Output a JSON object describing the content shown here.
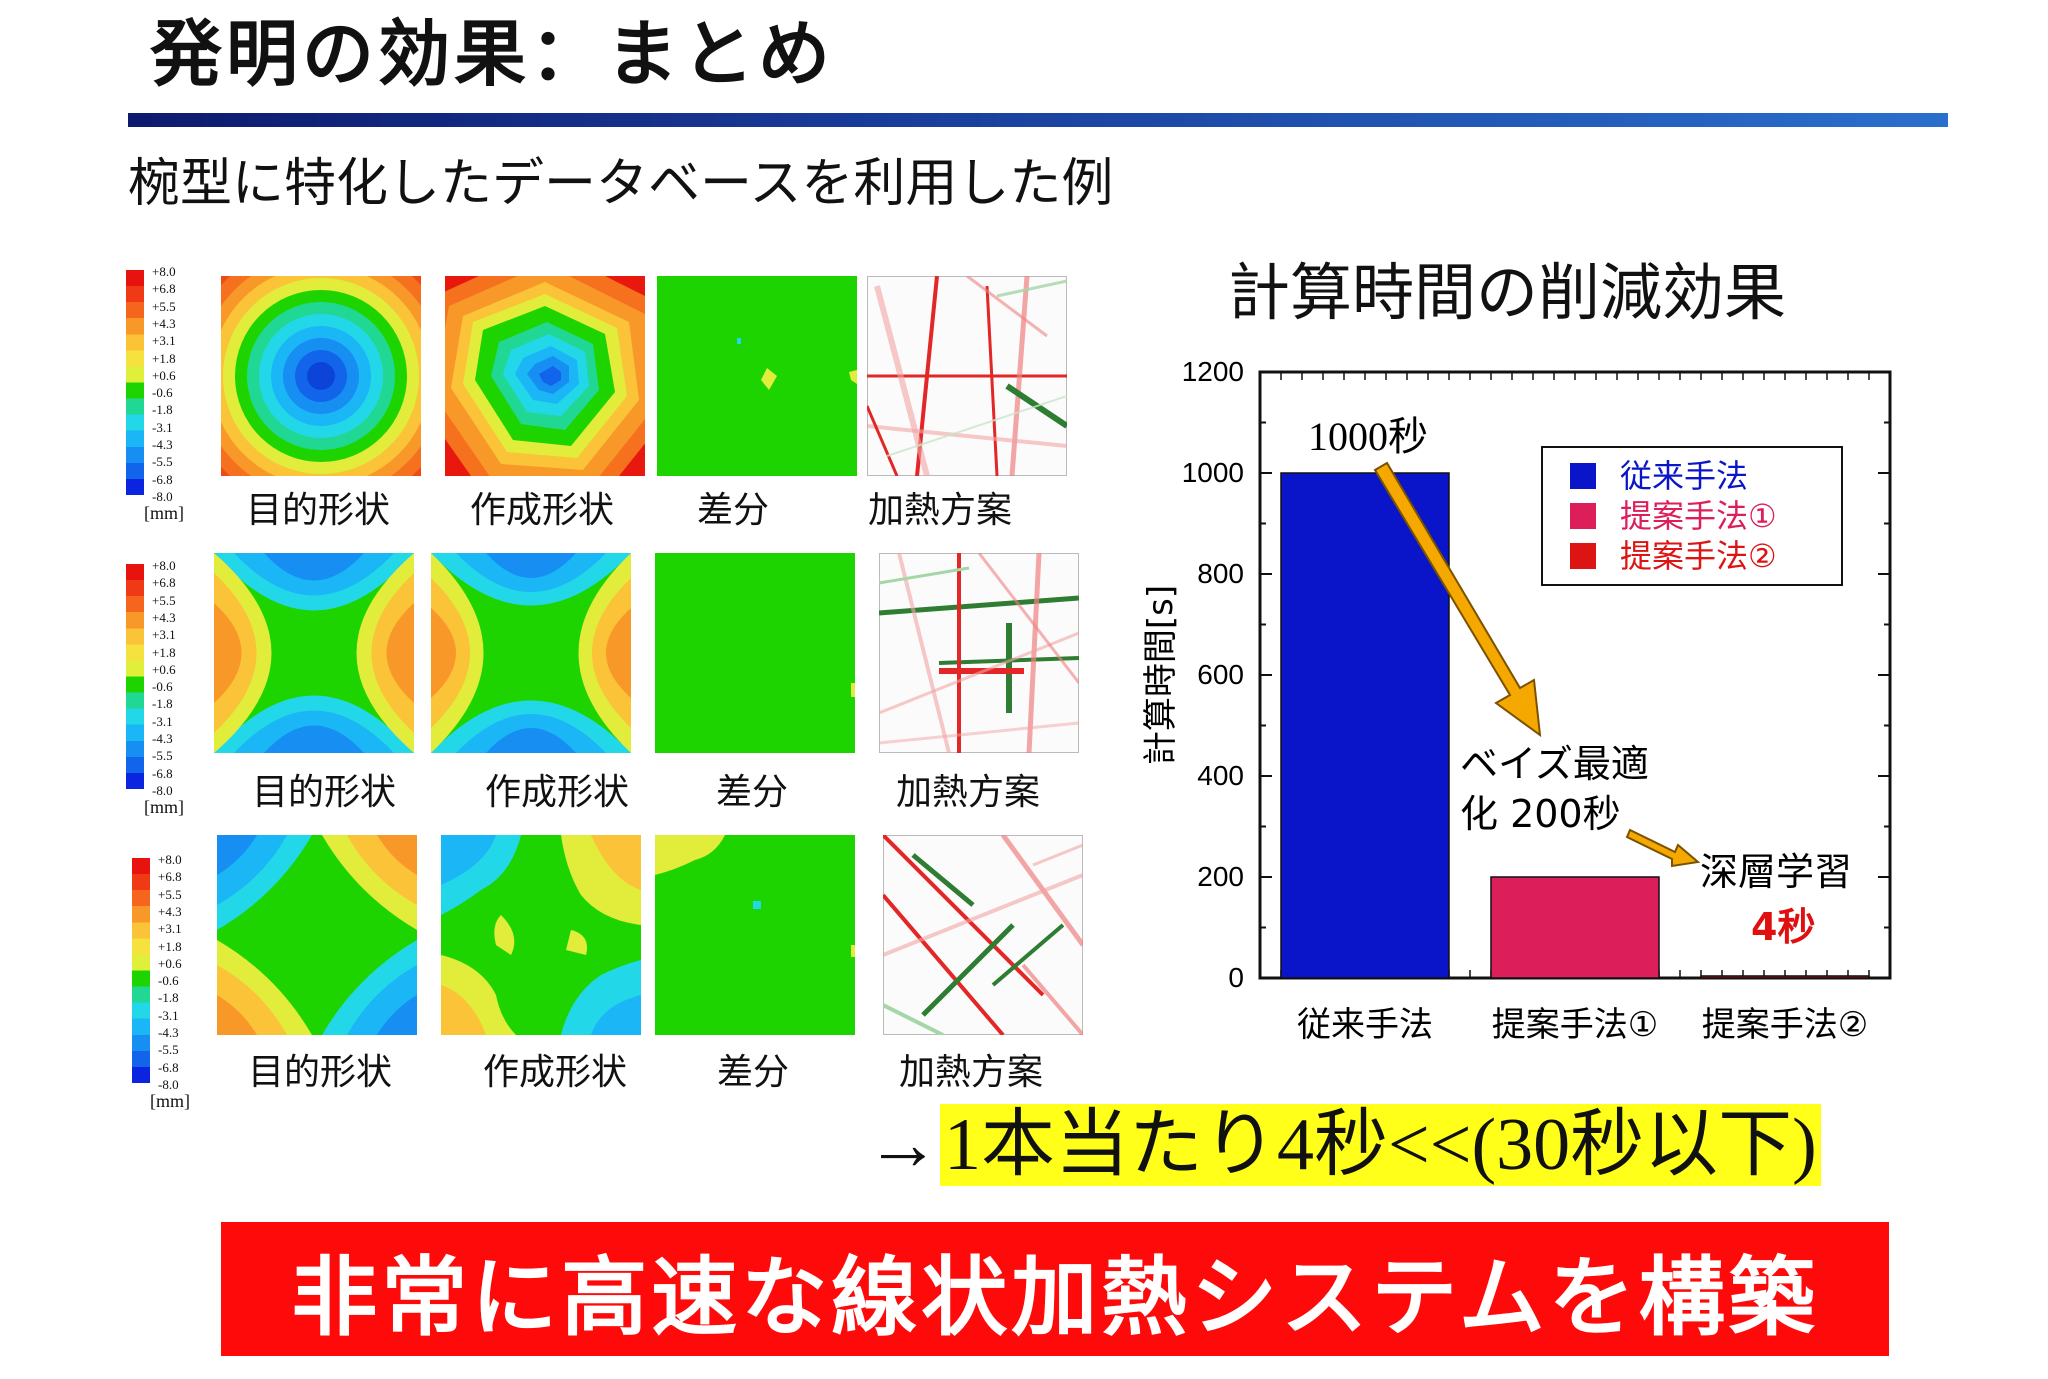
{
  "slide": {
    "title": "発明の効果：まとめ",
    "subtitle": "椀型に特化したデータベースを利用した例"
  },
  "colorbar": {
    "ticks": [
      "+8.0",
      "+6.8",
      "+5.5",
      "+4.3",
      "+3.1",
      "+1.8",
      "+0.6",
      "-0.6",
      "-1.8",
      "-3.1",
      "-4.3",
      "-5.5",
      "-6.8",
      "-8.0"
    ],
    "unit": "[mm]",
    "colors": [
      "#e8120f",
      "#f03a16",
      "#f5651d",
      "#f89828",
      "#fbc338",
      "#f6e23e",
      "#dfef3a",
      "#1ed400",
      "#20d894",
      "#22d8e8",
      "#1ab6f5",
      "#168ef2",
      "#1264ea",
      "#0a24e0"
    ]
  },
  "rows": [
    {
      "captions": {
        "target": "目的形状",
        "created": "作成形状",
        "diff": "差分",
        "plan": "加熱方案"
      }
    },
    {
      "captions": {
        "target": "目的形状",
        "created": "作成形状",
        "diff": "差分",
        "plan": "加熱方案"
      }
    },
    {
      "captions": {
        "target": "目的形状",
        "created": "作成形状",
        "diff": "差分",
        "plan": "加熱方案"
      }
    }
  ],
  "chart_data": {
    "type": "bar",
    "title": "計算時間の削減効果",
    "ylabel": "計算時間[s]",
    "ylim": [
      0,
      1200
    ],
    "yticks": [
      0,
      200,
      400,
      600,
      800,
      1000,
      1200
    ],
    "categories": [
      "従来手法",
      "提案手法①",
      "提案手法②"
    ],
    "values": [
      1000,
      200,
      4
    ],
    "colors": [
      "#0a14c8",
      "#dc1e5a",
      "#dc1414"
    ],
    "legend": {
      "position": "top-right",
      "entries": [
        "従来手法",
        "提案手法①",
        "提案手法②"
      ],
      "text_colors": [
        "#0a14c8",
        "#dc1e5a",
        "#dc1414"
      ]
    },
    "annotations": {
      "bar1": "1000秒",
      "bayes_line1": "ベイズ最適",
      "bayes_line2": "化 200秒",
      "deep": "深層学習",
      "deep_value": "4秒"
    }
  },
  "conclusion": {
    "arrow": "→",
    "text": "1本当たり4秒<<(30秒以下)"
  },
  "banner": {
    "text": "非常に高速な線状加熱システムを構築"
  }
}
